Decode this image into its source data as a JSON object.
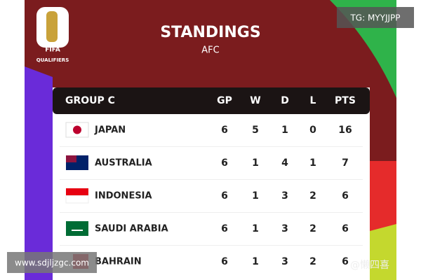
{
  "logo": {
    "brand": "FIFA",
    "caption": "QUALIFIERS"
  },
  "header": {
    "title": "STANDINGS",
    "subtitle": "AFC"
  },
  "watermarks": {
    "top_right": "TG: MYYJJPP",
    "bottom_left": "www.sdjljzgc.com",
    "bottom_right": "@懒四喜"
  },
  "table": {
    "columns": [
      "GROUP C",
      "GP",
      "W",
      "D",
      "L",
      "PTS"
    ],
    "rows": [
      [
        "JAPAN",
        6,
        5,
        1,
        0,
        16
      ],
      [
        "AUSTRALIA",
        6,
        1,
        4,
        1,
        7
      ],
      [
        "INDONESIA",
        6,
        1,
        3,
        2,
        6
      ],
      [
        "SAUDI ARABIA",
        6,
        1,
        3,
        2,
        6
      ],
      [
        "BAHRAIN",
        6,
        1,
        3,
        2,
        6
      ]
    ]
  }
}
